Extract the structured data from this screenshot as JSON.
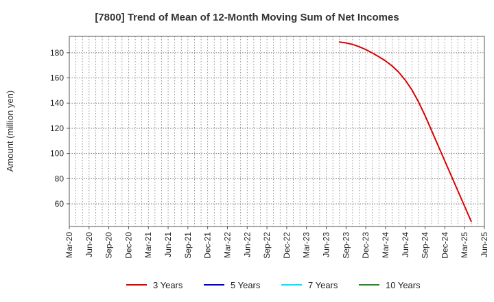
{
  "chart_data": {
    "type": "line",
    "title": "[7800]  Trend of Mean of 12-Month Moving Sum of Net Incomes",
    "xlabel": "",
    "ylabel": "Amount (million yen)",
    "x_tick_labels": [
      "Mar-20",
      "Jun-20",
      "Sep-20",
      "Dec-20",
      "Mar-21",
      "Jun-21",
      "Sep-21",
      "Dec-21",
      "Mar-22",
      "Jun-22",
      "Sep-22",
      "Dec-22",
      "Mar-23",
      "Jun-23",
      "Sep-23",
      "Dec-23",
      "Mar-24",
      "Jun-24",
      "Sep-24",
      "Dec-24",
      "Mar-25",
      "Jun-25"
    ],
    "y_ticks": [
      60,
      80,
      100,
      120,
      140,
      160,
      180
    ],
    "ylim": [
      42,
      193
    ],
    "grid": true,
    "legend_position": "bottom",
    "series": [
      {
        "name": "3 Years",
        "color": "#dd0000",
        "points": [
          {
            "x": "Aug-23",
            "y": 188.5
          },
          {
            "x": "Sep-23",
            "y": 187.8
          },
          {
            "x": "Oct-23",
            "y": 186.6
          },
          {
            "x": "Nov-23",
            "y": 184.8
          },
          {
            "x": "Dec-23",
            "y": 182.5
          },
          {
            "x": "Jan-24",
            "y": 179.8
          },
          {
            "x": "Feb-24",
            "y": 176.8
          },
          {
            "x": "Mar-24",
            "y": 173.5
          },
          {
            "x": "Apr-24",
            "y": 169.5
          },
          {
            "x": "May-24",
            "y": 164.5
          },
          {
            "x": "Jun-24",
            "y": 158.2
          },
          {
            "x": "Jul-24",
            "y": 150.5
          },
          {
            "x": "Aug-24",
            "y": 141.0
          },
          {
            "x": "Sep-24",
            "y": 130.0
          },
          {
            "x": "Oct-24",
            "y": 118.0
          },
          {
            "x": "Nov-24",
            "y": 106.0
          },
          {
            "x": "Dec-24",
            "y": 94.0
          },
          {
            "x": "Jan-25",
            "y": 82.0
          },
          {
            "x": "Feb-25",
            "y": 70.0
          },
          {
            "x": "Mar-25",
            "y": 58.0
          },
          {
            "x": "Apr-25",
            "y": 46.0
          }
        ]
      },
      {
        "name": "5 Years",
        "color": "#0000cc",
        "points": []
      },
      {
        "name": "7 Years",
        "color": "#00e5ff",
        "points": []
      },
      {
        "name": "10 Years",
        "color": "#228b22",
        "points": []
      }
    ]
  }
}
